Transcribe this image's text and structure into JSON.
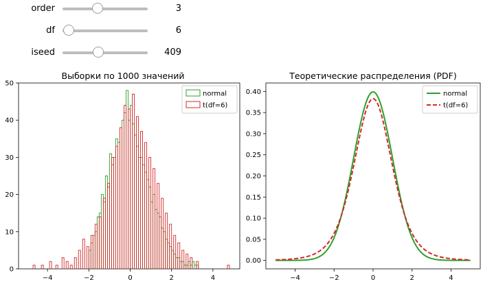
{
  "sliders": [
    {
      "label": "order",
      "value": "3",
      "fraction": 0.41
    },
    {
      "label": "df",
      "value": "6",
      "fraction": 0.07
    },
    {
      "label": "iseed",
      "value": "409",
      "fraction": 0.42
    }
  ],
  "chart_data": [
    {
      "type": "histogram",
      "title": "Выборки по 1000 значений",
      "xlim": [
        -5.4,
        5.3
      ],
      "ylim": [
        0,
        50
      ],
      "xticks": [
        -4,
        -2,
        0,
        2,
        4
      ],
      "yticks": [
        0,
        10,
        20,
        30,
        40,
        50
      ],
      "legend": "top-right",
      "series": [
        {
          "name": "normal",
          "color": "#2ca02c",
          "x": [
            -2.0,
            -1.9,
            -1.8,
            -1.7,
            -1.6,
            -1.5,
            -1.4,
            -1.3,
            -1.2,
            -1.1,
            -1.0,
            -0.9,
            -0.8,
            -0.7,
            -0.6,
            -0.5,
            -0.4,
            -0.3,
            -0.2,
            -0.1,
            0.0,
            0.1,
            0.2,
            0.3,
            0.4,
            0.5,
            0.6,
            0.7,
            0.8,
            0.9,
            1.0,
            1.1,
            1.2,
            1.3,
            1.4,
            1.5,
            1.6,
            1.7,
            1.8,
            1.9,
            2.0,
            2.1,
            2.2,
            2.3,
            2.4,
            2.5,
            2.6,
            2.7,
            2.8,
            2.9,
            3.0,
            3.1,
            3.2
          ],
          "values": [
            5,
            7,
            9,
            10,
            14,
            15,
            20,
            18,
            25,
            22,
            31,
            28,
            30,
            35,
            34,
            38,
            40,
            42,
            48,
            40,
            44,
            39,
            36,
            33,
            30,
            30,
            28,
            26,
            24,
            22,
            18,
            20,
            16,
            15,
            14,
            11,
            10,
            8,
            7,
            6,
            5,
            4,
            3,
            3,
            2,
            2,
            1,
            1,
            2,
            1,
            2,
            1,
            1
          ]
        },
        {
          "name": "t(df=6)",
          "color": "#d62728",
          "x": [
            -4.7,
            -4.3,
            -3.9,
            -3.6,
            -3.3,
            -3.1,
            -2.9,
            -2.7,
            -2.5,
            -2.3,
            -2.1,
            -1.9,
            -1.7,
            -1.5,
            -1.3,
            -1.1,
            -0.9,
            -0.7,
            -0.5,
            -0.3,
            -0.1,
            0.1,
            0.3,
            0.5,
            0.7,
            0.9,
            1.1,
            1.3,
            1.5,
            1.7,
            1.9,
            2.1,
            2.3,
            2.5,
            2.7,
            2.9,
            3.2,
            4.7
          ],
          "values": [
            1,
            1,
            2,
            1,
            3,
            2,
            1,
            3,
            5,
            8,
            6,
            9,
            12,
            14,
            19,
            23,
            30,
            33,
            38,
            44,
            43,
            47,
            41,
            37,
            34,
            30,
            27,
            23,
            19,
            15,
            12,
            9,
            7,
            5,
            4,
            3,
            2,
            1
          ]
        }
      ]
    },
    {
      "type": "line",
      "title": "Теоретические распределения (PDF)",
      "xlim": [
        -5.5,
        5.5
      ],
      "ylim": [
        -0.02,
        0.42
      ],
      "xticks": [
        -4,
        -2,
        0,
        2,
        4
      ],
      "yticks": [
        0.0,
        0.05,
        0.1,
        0.15,
        0.2,
        0.25,
        0.3,
        0.35,
        0.4
      ],
      "legend": "top-right",
      "series": [
        {
          "name": "normal",
          "color": "#2ca02c",
          "style": "solid",
          "distribution": "normal",
          "x_range": [
            -5,
            5
          ]
        },
        {
          "name": "t(df=6)",
          "color": "#d62728",
          "style": "dashed",
          "distribution": "t",
          "df": 6,
          "x_range": [
            -5,
            5
          ]
        }
      ]
    }
  ]
}
